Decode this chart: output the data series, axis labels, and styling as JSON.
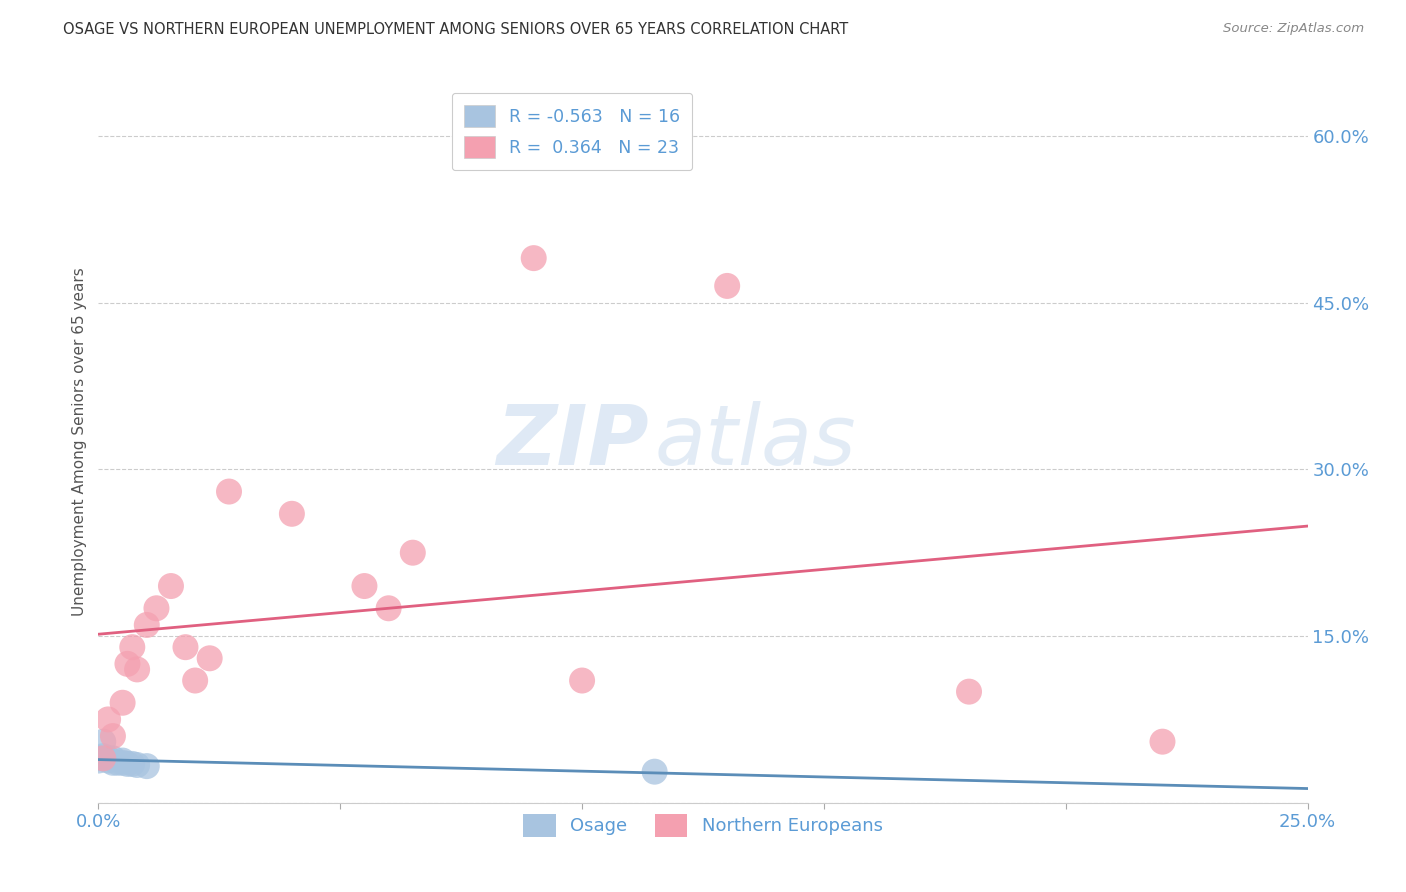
{
  "title": "OSAGE VS NORTHERN EUROPEAN UNEMPLOYMENT AMONG SENIORS OVER 65 YEARS CORRELATION CHART",
  "source": "Source: ZipAtlas.com",
  "ylabel": "Unemployment Among Seniors over 65 years",
  "xlim": [
    0.0,
    0.25
  ],
  "ylim": [
    0.0,
    0.65
  ],
  "yticks": [
    0.0,
    0.15,
    0.3,
    0.45,
    0.6
  ],
  "xticks": [
    0.0,
    0.05,
    0.1,
    0.15,
    0.2,
    0.25
  ],
  "osage_color": "#a8c4e0",
  "ne_color": "#f4a0b0",
  "osage_line_color": "#5b8db8",
  "ne_line_color": "#e06080",
  "osage_R": -0.563,
  "osage_N": 16,
  "ne_R": 0.364,
  "ne_N": 23,
  "osage_x": [
    0.0,
    0.0,
    0.001,
    0.001,
    0.002,
    0.002,
    0.003,
    0.003,
    0.004,
    0.005,
    0.005,
    0.006,
    0.007,
    0.008,
    0.01,
    0.115
  ],
  "osage_y": [
    0.04,
    0.038,
    0.055,
    0.042,
    0.04,
    0.038,
    0.04,
    0.036,
    0.036,
    0.038,
    0.036,
    0.035,
    0.035,
    0.034,
    0.033,
    0.028
  ],
  "ne_x": [
    0.001,
    0.002,
    0.003,
    0.005,
    0.006,
    0.007,
    0.008,
    0.01,
    0.012,
    0.015,
    0.018,
    0.02,
    0.023,
    0.027,
    0.04,
    0.055,
    0.06,
    0.065,
    0.09,
    0.1,
    0.13,
    0.18,
    0.22
  ],
  "ne_y": [
    0.04,
    0.075,
    0.06,
    0.09,
    0.125,
    0.14,
    0.12,
    0.16,
    0.175,
    0.195,
    0.14,
    0.11,
    0.13,
    0.28,
    0.26,
    0.195,
    0.175,
    0.225,
    0.49,
    0.11,
    0.465,
    0.1,
    0.055
  ],
  "watermark_zip": "ZIP",
  "watermark_atlas": "atlas",
  "background_color": "#ffffff",
  "grid_color": "#cccccc",
  "tick_color": "#5b9bd5",
  "label_color": "#555555",
  "title_color": "#333333",
  "source_color": "#888888"
}
